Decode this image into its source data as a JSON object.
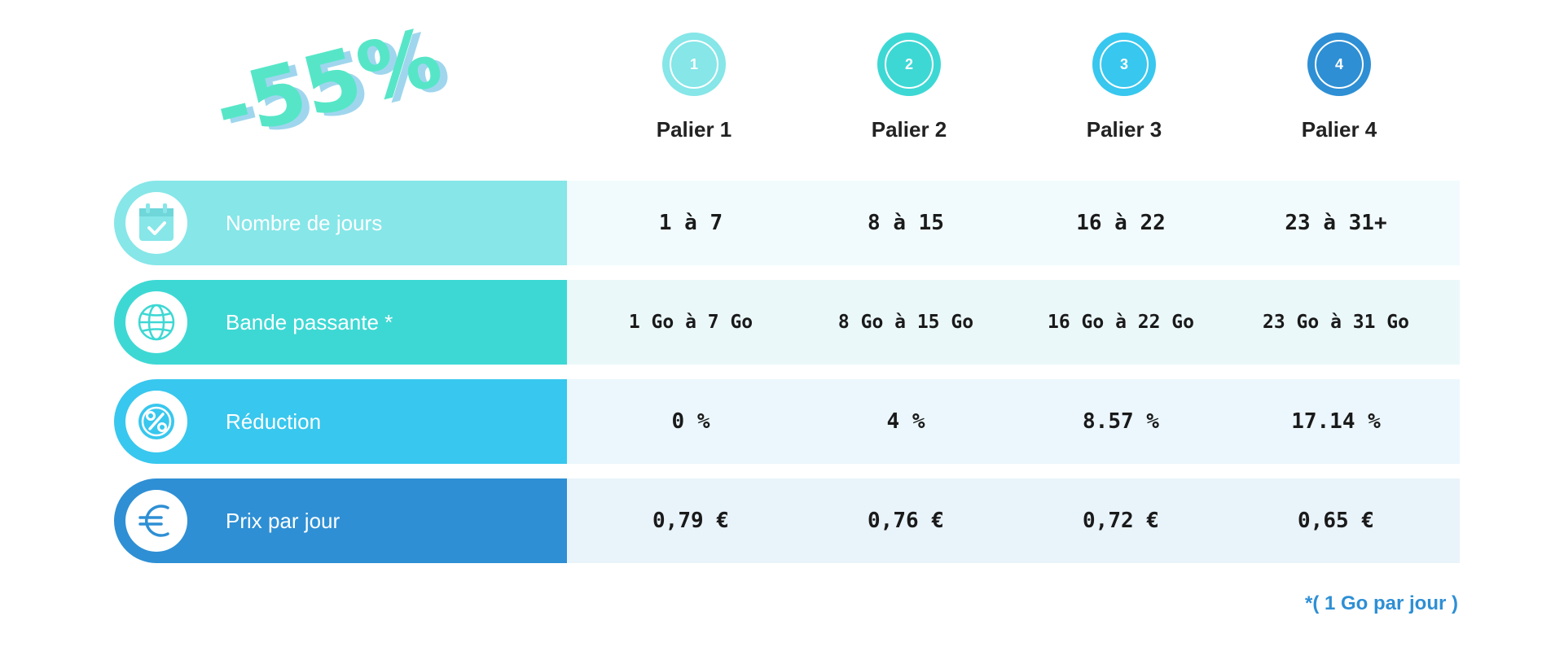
{
  "promo": {
    "discount": "-55%"
  },
  "tiers": [
    {
      "number": "1",
      "label": "Palier 1",
      "color": "#86e6e8"
    },
    {
      "number": "2",
      "label": "Palier 2",
      "color": "#3dd8d4"
    },
    {
      "number": "3",
      "label": "Palier 3",
      "color": "#38c7ee"
    },
    {
      "number": "4",
      "label": "Palier 4",
      "color": "#2e8fd4"
    }
  ],
  "rows": [
    {
      "label": "Nombre de jours",
      "icon": "calendar-check-icon",
      "color": "#86e6e8",
      "cell_bg": "#f1fbfd",
      "cells": [
        {
          "value": "1 à 7"
        },
        {
          "value": "8 à 15"
        },
        {
          "value": "16 à 22"
        },
        {
          "value": "23 à 31+"
        }
      ]
    },
    {
      "label": "Bande passante *",
      "icon": "globe-icon",
      "color": "#3dd8d4",
      "cell_bg": "#ebf8fa",
      "cells": [
        {
          "value": "1 Go à 7 Go"
        },
        {
          "value": "8 Go à 15 Go"
        },
        {
          "value": "16 Go à 22 Go"
        },
        {
          "value": "23 Go à 31 Go"
        }
      ]
    },
    {
      "label": "Réduction",
      "icon": "percent-icon",
      "color": "#38c7ee",
      "cell_bg": "#ebf7fc",
      "cells": [
        {
          "value": "0 %"
        },
        {
          "value": "4 %"
        },
        {
          "value": "8.57 %"
        },
        {
          "value": "17.14 %"
        }
      ]
    },
    {
      "label": "Prix par jour",
      "icon": "euro-icon",
      "color": "#2e8fd4",
      "cell_bg": "#e9f3fa",
      "cells": [
        {
          "value": "0,79 €"
        },
        {
          "value": "0,76 €"
        },
        {
          "value": "0,72 €"
        },
        {
          "value": "0,65 €"
        }
      ]
    }
  ],
  "footnote": "*( 1 Go par jour )"
}
